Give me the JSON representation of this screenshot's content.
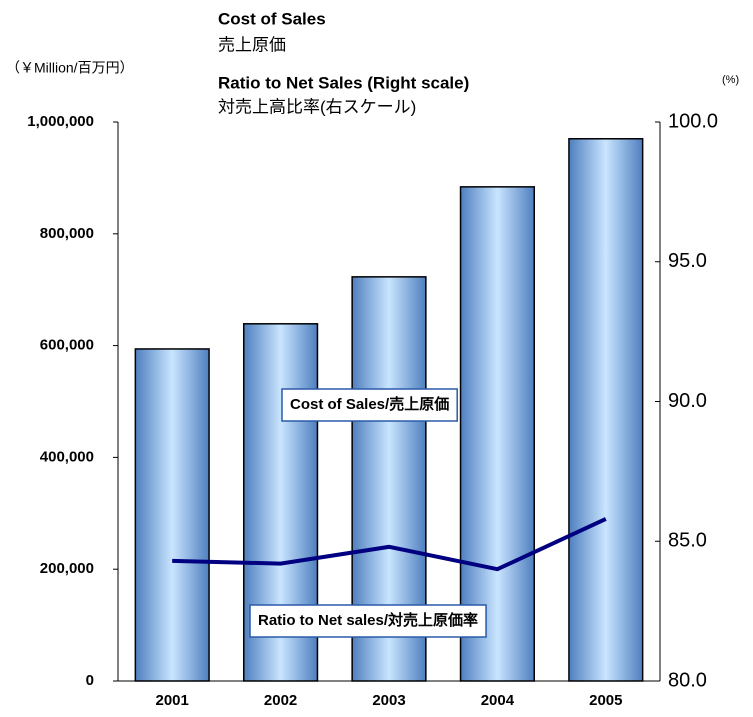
{
  "chart_data": {
    "type": "bar",
    "title": "Cost of Sales",
    "title_ja": "売上原価",
    "subtitle": "Ratio to Net Sales (Right scale)",
    "subtitle_ja": "対売上高比率(右スケール)",
    "y_label": "（￥Million/百万円）",
    "y2_label": "(%)",
    "categories": [
      "2001",
      "2002",
      "2003",
      "2004",
      "2005"
    ],
    "series": [
      {
        "name": "Cost of Sales/売上原価",
        "type": "bar",
        "color": "#6a9ad6",
        "values": [
          594000,
          639000,
          723000,
          884000,
          970000
        ]
      },
      {
        "name": "Ratio to Net sales/対売上原価率",
        "type": "line",
        "axis": "y2",
        "color": "#000080",
        "values": [
          84.3,
          84.2,
          84.8,
          84.0,
          85.8
        ]
      }
    ],
    "ylim": [
      0,
      1000000
    ],
    "yticks": [
      0,
      {
        "value": 200000,
        "label": "200,000"
      },
      {
        "value": 400000,
        "label": "400,000"
      },
      {
        "value": 600000,
        "label": "600,000"
      },
      {
        "value": 800000,
        "label": "800,000"
      },
      {
        "value": 1000000,
        "label": "1,000,000"
      }
    ],
    "y2lim": [
      80,
      100
    ],
    "y2ticks": [
      {
        "value": 80,
        "label": "80.0"
      },
      {
        "value": 85,
        "label": "85.0"
      },
      {
        "value": 90,
        "label": "90.0"
      },
      {
        "value": 95,
        "label": "95.0"
      },
      {
        "value": 100,
        "label": "100.0"
      }
    ],
    "grid": false
  }
}
